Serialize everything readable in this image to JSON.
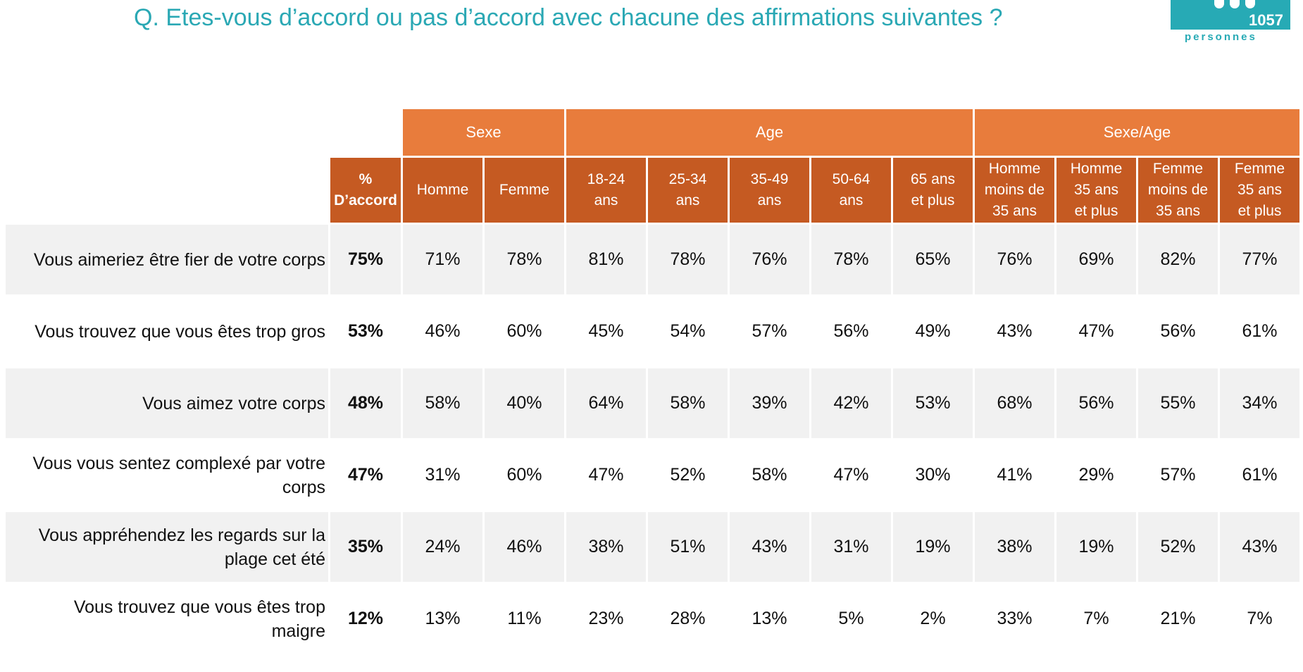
{
  "header": {
    "question": "Q. Etes-vous d’accord ou pas d’accord avec chacune des affirmations suivantes ?",
    "sample_count": "1057",
    "sample_label": "personnes"
  },
  "colors": {
    "title": "#2aa8b4",
    "group_header": "#e87c3c",
    "column_header": "#c55a22",
    "row_shade": "#f1f1f1"
  },
  "chart_data": {
    "type": "table",
    "groups": [
      {
        "label": "Sexe",
        "span": 2
      },
      {
        "label": "Age",
        "span": 5
      },
      {
        "label": "Sexe/Age",
        "span": 4
      }
    ],
    "total_column": [
      "%",
      "D’accord"
    ],
    "columns": [
      [
        "Homme"
      ],
      [
        "Femme"
      ],
      [
        "18-24",
        "ans"
      ],
      [
        "25-34",
        "ans"
      ],
      [
        "35-49",
        "ans"
      ],
      [
        "50-64",
        "ans"
      ],
      [
        "65 ans",
        "et plus"
      ],
      [
        "Homme",
        "moins de",
        "35 ans"
      ],
      [
        "Homme",
        "35 ans",
        "et plus"
      ],
      [
        "Femme",
        "moins de",
        "35 ans"
      ],
      [
        "Femme",
        "35 ans",
        "et plus"
      ]
    ],
    "rows": [
      {
        "label": [
          "Vous aimeriez être fier de votre corps"
        ],
        "total": "75%",
        "values": [
          "71%",
          "78%",
          "81%",
          "78%",
          "76%",
          "78%",
          "65%",
          "76%",
          "69%",
          "82%",
          "77%"
        ]
      },
      {
        "label": [
          "Vous trouvez que vous êtes trop gros"
        ],
        "total": "53%",
        "values": [
          "46%",
          "60%",
          "45%",
          "54%",
          "57%",
          "56%",
          "49%",
          "43%",
          "47%",
          "56%",
          "61%"
        ]
      },
      {
        "label": [
          "Vous aimez votre corps"
        ],
        "total": "48%",
        "values": [
          "58%",
          "40%",
          "64%",
          "58%",
          "39%",
          "42%",
          "53%",
          "68%",
          "56%",
          "55%",
          "34%"
        ]
      },
      {
        "label": [
          "Vous vous sentez complexé par votre",
          "corps"
        ],
        "total": "47%",
        "values": [
          "31%",
          "60%",
          "47%",
          "52%",
          "58%",
          "47%",
          "30%",
          "41%",
          "29%",
          "57%",
          "61%"
        ]
      },
      {
        "label": [
          "Vous appréhendez les regards sur la",
          "plage cet été"
        ],
        "total": "35%",
        "values": [
          "24%",
          "46%",
          "38%",
          "51%",
          "43%",
          "31%",
          "19%",
          "38%",
          "19%",
          "52%",
          "43%"
        ]
      },
      {
        "label": [
          "Vous trouvez que vous êtes trop",
          "maigre"
        ],
        "total": "12%",
        "values": [
          "13%",
          "11%",
          "23%",
          "28%",
          "13%",
          "5%",
          "2%",
          "33%",
          "7%",
          "21%",
          "7%"
        ]
      }
    ]
  }
}
